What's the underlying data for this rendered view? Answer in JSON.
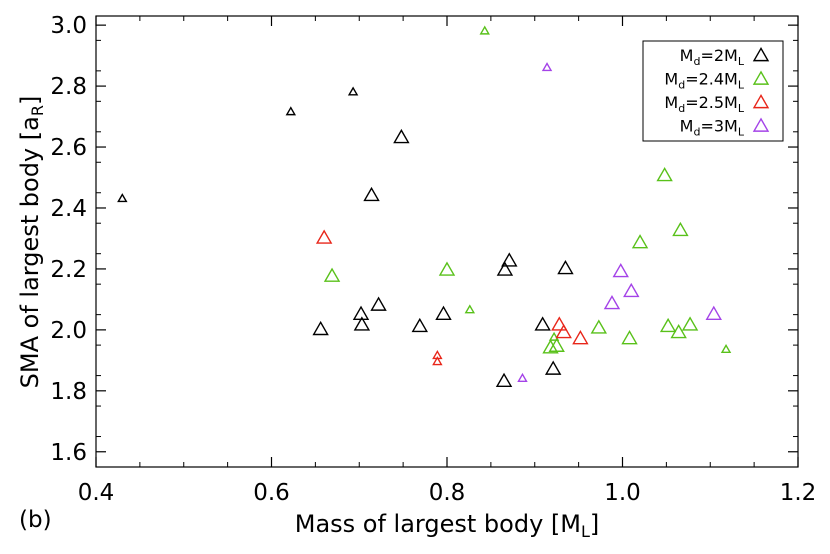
{
  "chart_data": {
    "type": "scatter",
    "panel_label": "(b)",
    "xlabel": "Mass of largest body [M",
    "xlabel_sub": "L",
    "xlabel_close": "]",
    "ylabel": "SMA of largest body [a",
    "ylabel_sub": "R",
    "ylabel_close": "]",
    "xlim": [
      0.4,
      1.2
    ],
    "ylim": [
      1.55,
      3.03
    ],
    "xticks": [
      "0.4",
      "0.6",
      "0.8",
      "1.0",
      "1.2"
    ],
    "yticks": [
      "1.6",
      "1.8",
      "2.0",
      "2.2",
      "2.4",
      "2.6",
      "2.8",
      "3.0"
    ],
    "marker": "triangle-open",
    "legend_position": "top-right",
    "series": [
      {
        "name": "M_d=2M_L",
        "label": {
          "a": "M",
          "b": "d",
          "c": "=2M",
          "d": "L"
        },
        "color": "#000000",
        "points": [
          {
            "x": 0.43,
            "y": 2.43,
            "size": "small"
          },
          {
            "x": 0.622,
            "y": 2.715,
            "size": "small"
          },
          {
            "x": 0.693,
            "y": 2.78,
            "size": "small"
          },
          {
            "x": 0.748,
            "y": 2.63,
            "size": "large"
          },
          {
            "x": 0.714,
            "y": 2.44,
            "size": "large"
          },
          {
            "x": 0.656,
            "y": 2.0,
            "size": "large"
          },
          {
            "x": 0.702,
            "y": 2.05,
            "size": "large"
          },
          {
            "x": 0.703,
            "y": 2.015,
            "size": "large"
          },
          {
            "x": 0.722,
            "y": 2.08,
            "size": "large"
          },
          {
            "x": 0.769,
            "y": 2.01,
            "size": "large"
          },
          {
            "x": 0.796,
            "y": 2.05,
            "size": "large"
          },
          {
            "x": 0.866,
            "y": 2.195,
            "size": "large"
          },
          {
            "x": 0.871,
            "y": 2.225,
            "size": "large"
          },
          {
            "x": 0.935,
            "y": 2.2,
            "size": "large"
          },
          {
            "x": 0.909,
            "y": 2.015,
            "size": "large"
          },
          {
            "x": 0.865,
            "y": 1.83,
            "size": "large"
          },
          {
            "x": 0.921,
            "y": 1.87,
            "size": "large"
          }
        ]
      },
      {
        "name": "M_d=2.4M_L",
        "label": {
          "a": "M",
          "b": "d",
          "c": "=2.4M",
          "d": "L"
        },
        "color": "#59c11a",
        "points": [
          {
            "x": 0.843,
            "y": 2.98,
            "size": "small"
          },
          {
            "x": 0.669,
            "y": 2.175,
            "size": "large"
          },
          {
            "x": 0.8,
            "y": 2.195,
            "size": "large"
          },
          {
            "x": 0.826,
            "y": 2.065,
            "size": "small"
          },
          {
            "x": 0.918,
            "y": 1.94,
            "size": "large"
          },
          {
            "x": 0.925,
            "y": 1.945,
            "size": "large"
          },
          {
            "x": 0.922,
            "y": 1.975,
            "size": "small"
          },
          {
            "x": 0.973,
            "y": 2.005,
            "size": "large"
          },
          {
            "x": 1.008,
            "y": 1.97,
            "size": "large"
          },
          {
            "x": 1.02,
            "y": 2.285,
            "size": "large"
          },
          {
            "x": 1.048,
            "y": 2.505,
            "size": "large"
          },
          {
            "x": 1.052,
            "y": 2.01,
            "size": "large"
          },
          {
            "x": 1.064,
            "y": 1.99,
            "size": "large"
          },
          {
            "x": 1.066,
            "y": 2.325,
            "size": "large"
          },
          {
            "x": 1.077,
            "y": 2.015,
            "size": "large"
          },
          {
            "x": 1.118,
            "y": 1.935,
            "size": "small"
          }
        ]
      },
      {
        "name": "M_d=2.5M_L",
        "label": {
          "a": "M",
          "b": "d",
          "c": "=2.5M",
          "d": "L"
        },
        "color": "#e8261a",
        "points": [
          {
            "x": 0.66,
            "y": 2.3,
            "size": "large"
          },
          {
            "x": 0.789,
            "y": 1.915,
            "size": "small"
          },
          {
            "x": 0.789,
            "y": 1.895,
            "size": "small"
          },
          {
            "x": 0.928,
            "y": 2.015,
            "size": "large"
          },
          {
            "x": 0.933,
            "y": 1.99,
            "size": "large"
          },
          {
            "x": 0.952,
            "y": 1.97,
            "size": "large"
          }
        ]
      },
      {
        "name": "M_d=3M_L",
        "label": {
          "a": "M",
          "b": "d",
          "c": "=3M",
          "d": "L"
        },
        "color": "#a443e8",
        "points": [
          {
            "x": 0.914,
            "y": 2.86,
            "size": "small"
          },
          {
            "x": 0.886,
            "y": 1.84,
            "size": "small"
          },
          {
            "x": 0.988,
            "y": 2.085,
            "size": "large"
          },
          {
            "x": 0.998,
            "y": 2.19,
            "size": "large"
          },
          {
            "x": 1.01,
            "y": 2.125,
            "size": "large"
          },
          {
            "x": 1.104,
            "y": 2.05,
            "size": "large"
          }
        ]
      }
    ]
  }
}
